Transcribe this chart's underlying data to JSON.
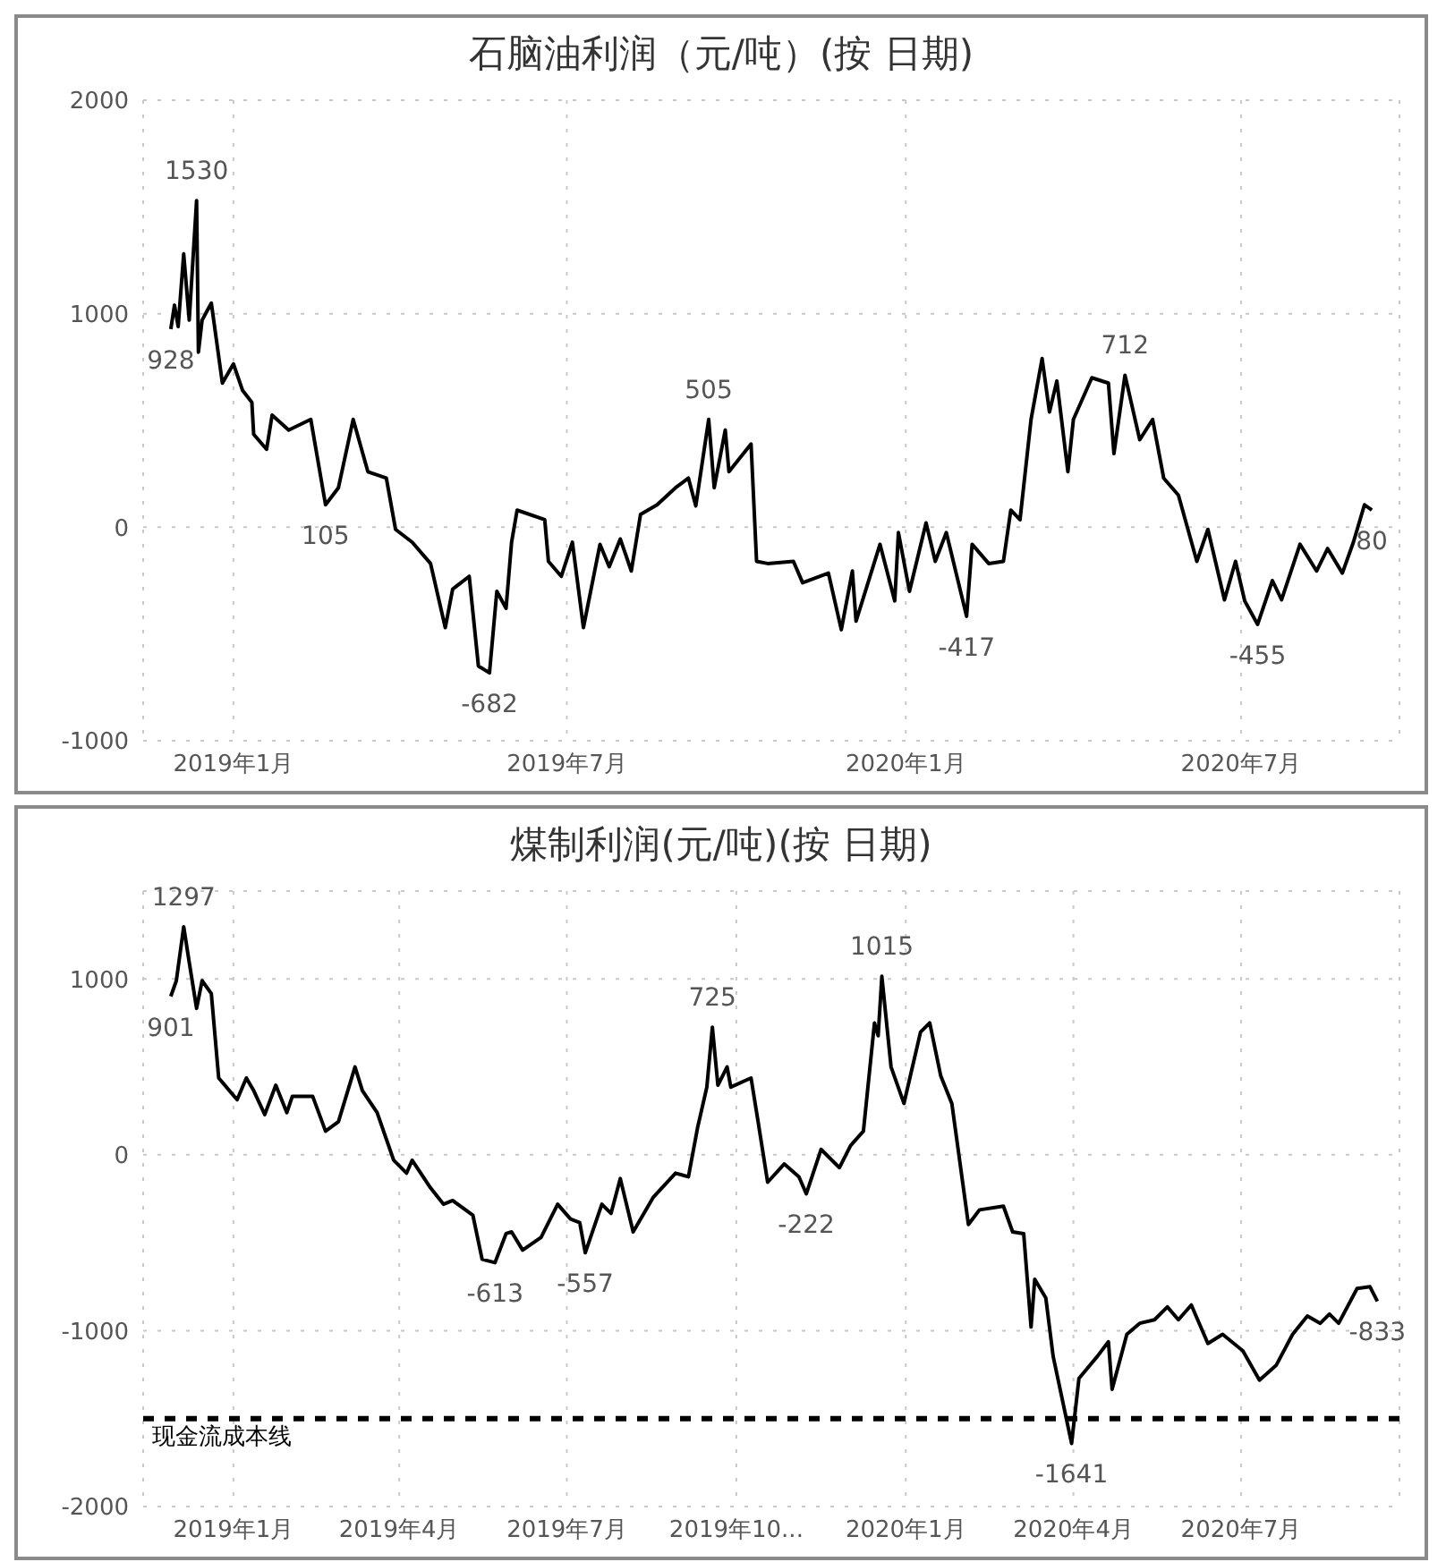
{
  "chart_data": [
    {
      "type": "line",
      "title": "石脑油利润（元/吨）(按 日期)",
      "grid": true,
      "line_style": "solid",
      "marker": "none",
      "xlim": [
        "2018-11-13",
        "2020-09-25"
      ],
      "xticks": [
        {
          "value": "2019-01-01",
          "label": "2019年1月"
        },
        {
          "value": "2019-07-01",
          "label": "2019年7月"
        },
        {
          "value": "2020-01-01",
          "label": "2020年1月"
        },
        {
          "value": "2020-07-01",
          "label": "2020年7月"
        }
      ],
      "ylim": [
        -1000,
        2000
      ],
      "yticks": [
        -1000,
        0,
        1000,
        2000
      ],
      "series": [
        {
          "color": "#000000",
          "x": [
            "2018-11-28",
            "2018-11-30",
            "2018-12-02",
            "2018-12-05",
            "2018-12-08",
            "2018-12-12",
            "2018-12-13",
            "2018-12-15",
            "2018-12-20",
            "2018-12-26",
            "2019-01-01",
            "2019-01-06",
            "2019-01-11",
            "2019-01-12",
            "2019-01-19",
            "2019-01-22",
            "2019-01-31",
            "2019-02-12",
            "2019-02-20",
            "2019-02-27",
            "2019-03-07",
            "2019-03-15",
            "2019-03-25",
            "2019-03-30",
            "2019-04-08",
            "2019-04-18",
            "2019-04-26",
            "2019-04-30",
            "2019-05-09",
            "2019-05-14",
            "2019-05-20",
            "2019-05-24",
            "2019-05-29",
            "2019-06-01",
            "2019-06-04",
            "2019-06-19",
            "2019-06-21",
            "2019-06-28",
            "2019-07-04",
            "2019-07-10",
            "2019-07-19",
            "2019-07-24",
            "2019-07-30",
            "2019-08-05",
            "2019-08-10",
            "2019-08-19",
            "2019-08-29",
            "2019-09-05",
            "2019-09-09",
            "2019-09-16",
            "2019-09-19",
            "2019-09-25",
            "2019-09-27",
            "2019-10-09",
            "2019-10-12",
            "2019-10-18",
            "2019-11-01",
            "2019-11-06",
            "2019-11-20",
            "2019-11-27",
            "2019-12-03",
            "2019-12-05",
            "2019-12-18",
            "2019-12-26",
            "2019-12-28",
            "2020-01-03",
            "2020-01-12",
            "2020-01-17",
            "2020-01-23",
            "2020-02-03",
            "2020-02-06",
            "2020-02-15",
            "2020-02-23",
            "2020-02-27",
            "2020-03-03",
            "2020-03-09",
            "2020-03-15",
            "2020-03-19",
            "2020-03-23",
            "2020-03-29",
            "2020-04-01",
            "2020-04-11",
            "2020-04-20",
            "2020-04-23",
            "2020-04-29",
            "2020-05-07",
            "2020-05-14",
            "2020-05-20",
            "2020-05-28",
            "2020-06-07",
            "2020-06-13",
            "2020-06-22",
            "2020-06-28",
            "2020-07-03",
            "2020-07-10",
            "2020-07-18",
            "2020-07-23",
            "2020-08-02",
            "2020-08-11",
            "2020-08-17",
            "2020-08-25",
            "2020-08-31",
            "2020-09-06",
            "2020-09-10"
          ],
          "values": [
            928,
            1040,
            940,
            1280,
            970,
            1530,
            820,
            970,
            1050,
            675,
            765,
            640,
            585,
            435,
            365,
            525,
            455,
            505,
            105,
            185,
            505,
            260,
            230,
            -10,
            -70,
            -170,
            -470,
            -290,
            -230,
            -650,
            -682,
            -300,
            -380,
            -70,
            80,
            35,
            -160,
            -230,
            -70,
            -470,
            -80,
            -185,
            -55,
            -205,
            60,
            105,
            185,
            230,
            100,
            505,
            185,
            455,
            260,
            390,
            -160,
            -170,
            -160,
            -260,
            -215,
            -480,
            -205,
            -440,
            -80,
            -345,
            -25,
            -300,
            20,
            -160,
            -25,
            -417,
            -80,
            -170,
            -160,
            80,
            35,
            505,
            790,
            540,
            685,
            260,
            505,
            700,
            675,
            345,
            712,
            410,
            505,
            230,
            150,
            -160,
            -10,
            -340,
            -160,
            -345,
            -455,
            -250,
            -340,
            -80,
            -205,
            -100,
            -215,
            -70,
            105,
            80
          ]
        }
      ],
      "annotations": [
        {
          "text": "1530",
          "x": "2018-12-12",
          "y": 1530
        },
        {
          "text": "928",
          "x": "2018-11-28",
          "y": 928
        },
        {
          "text": "105",
          "x": "2019-02-20",
          "y": 105
        },
        {
          "text": "-682",
          "x": "2019-05-20",
          "y": -682
        },
        {
          "text": "505",
          "x": "2019-09-16",
          "y": 505
        },
        {
          "text": "-417",
          "x": "2020-02-03",
          "y": -417
        },
        {
          "text": "712",
          "x": "2020-04-29",
          "y": 712
        },
        {
          "text": "-455",
          "x": "2020-07-10",
          "y": -455
        },
        {
          "text": "80",
          "x": "2020-09-10",
          "y": 80
        }
      ]
    },
    {
      "type": "line",
      "title": "煤制利润(元/吨)(按 日期)",
      "grid": true,
      "line_style": "solid",
      "marker": "none",
      "xlim": [
        "2018-11-13",
        "2020-09-25"
      ],
      "xticks": [
        {
          "value": "2019-01-01",
          "label": "2019年1月"
        },
        {
          "value": "2019-04-01",
          "label": "2019年4月"
        },
        {
          "value": "2019-07-01",
          "label": "2019年7月"
        },
        {
          "value": "2019-10-01",
          "label": "2019年10..."
        },
        {
          "value": "2020-01-01",
          "label": "2020年1月"
        },
        {
          "value": "2020-04-01",
          "label": "2020年4月"
        },
        {
          "value": "2020-07-01",
          "label": "2020年7月"
        }
      ],
      "ylim": [
        -2000,
        1500
      ],
      "yticks": [
        -2000,
        -1000,
        0,
        1000
      ],
      "ref_lines": [
        {
          "axis": "y",
          "value": -1500,
          "label": "现金流成本线",
          "color": "#000000",
          "line_style": "dashed"
        }
      ],
      "series": [
        {
          "color": "#000000",
          "x": [
            "2018-11-28",
            "2018-12-01",
            "2018-12-05",
            "2018-12-08",
            "2018-12-12",
            "2018-12-15",
            "2018-12-20",
            "2018-12-24",
            "2019-01-03",
            "2019-01-08",
            "2019-01-12",
            "2019-01-18",
            "2019-01-24",
            "2019-01-30",
            "2019-02-02",
            "2019-02-13",
            "2019-02-20",
            "2019-02-27",
            "2019-03-08",
            "2019-03-12",
            "2019-03-20",
            "2019-03-29",
            "2019-04-05",
            "2019-04-08",
            "2019-04-18",
            "2019-04-25",
            "2019-04-30",
            "2019-05-11",
            "2019-05-16",
            "2019-05-23",
            "2019-05-29",
            "2019-06-01",
            "2019-06-07",
            "2019-06-17",
            "2019-06-26",
            "2019-07-03",
            "2019-07-08",
            "2019-07-11",
            "2019-07-20",
            "2019-07-25",
            "2019-07-30",
            "2019-08-06",
            "2019-08-17",
            "2019-08-29",
            "2019-09-05",
            "2019-09-10",
            "2019-09-15",
            "2019-09-18",
            "2019-09-21",
            "2019-09-26",
            "2019-09-28",
            "2019-10-09",
            "2019-10-13",
            "2019-10-18",
            "2019-10-27",
            "2019-11-04",
            "2019-11-08",
            "2019-11-16",
            "2019-11-26",
            "2019-12-02",
            "2019-12-09",
            "2019-12-15",
            "2019-12-17",
            "2019-12-19",
            "2019-12-24",
            "2019-12-31",
            "2020-01-09",
            "2020-01-14",
            "2020-01-20",
            "2020-01-26",
            "2020-02-04",
            "2020-02-10",
            "2020-02-23",
            "2020-02-28",
            "2020-03-05",
            "2020-03-09",
            "2020-03-11",
            "2020-03-17",
            "2020-03-21",
            "2020-03-31",
            "2020-04-04",
            "2020-04-14",
            "2020-04-20",
            "2020-04-22",
            "2020-04-30",
            "2020-05-07",
            "2020-05-15",
            "2020-05-22",
            "2020-05-28",
            "2020-06-04",
            "2020-06-13",
            "2020-06-21",
            "2020-07-02",
            "2020-07-11",
            "2020-07-20",
            "2020-07-29",
            "2020-08-06",
            "2020-08-13",
            "2020-08-18",
            "2020-08-23",
            "2020-09-02",
            "2020-09-09",
            "2020-09-13"
          ],
          "values": [
            901,
            990,
            1297,
            1095,
            833,
            990,
            917,
            437,
            313,
            437,
            365,
            229,
            396,
            240,
            333,
            333,
            135,
            188,
            500,
            365,
            240,
            -31,
            -104,
            -31,
            -188,
            -281,
            -260,
            -344,
            -594,
            -613,
            -448,
            -438,
            -542,
            -469,
            -281,
            -365,
            -385,
            -557,
            -281,
            -333,
            -135,
            -438,
            -240,
            -104,
            -125,
            156,
            385,
            725,
            396,
            500,
            385,
            437,
            177,
            -156,
            -52,
            -125,
            -222,
            31,
            -73,
            52,
            135,
            750,
            677,
            1015,
            500,
            292,
            698,
            750,
            448,
            292,
            -396,
            -313,
            -292,
            -438,
            -448,
            -979,
            -708,
            -813,
            -1146,
            -1641,
            -1271,
            -1146,
            -1063,
            -1333,
            -1021,
            -958,
            -938,
            -865,
            -938,
            -854,
            -1073,
            -1021,
            -1115,
            -1281,
            -1198,
            -1021,
            -917,
            -958,
            -906,
            -958,
            -760,
            -750,
            -833
          ]
        }
      ],
      "annotations": [
        {
          "text": "901",
          "x": "2018-11-28",
          "y": 901
        },
        {
          "text": "1297",
          "x": "2018-12-05",
          "y": 1297
        },
        {
          "text": "-613",
          "x": "2019-05-23",
          "y": -613
        },
        {
          "text": "-557",
          "x": "2019-07-11",
          "y": -557
        },
        {
          "text": "725",
          "x": "2019-09-18",
          "y": 725
        },
        {
          "text": "-222",
          "x": "2019-11-08",
          "y": -222
        },
        {
          "text": "1015",
          "x": "2019-12-19",
          "y": 1015
        },
        {
          "text": "-1641",
          "x": "2020-03-31",
          "y": -1641
        },
        {
          "text": "-833",
          "x": "2020-09-13",
          "y": -833
        }
      ]
    }
  ]
}
